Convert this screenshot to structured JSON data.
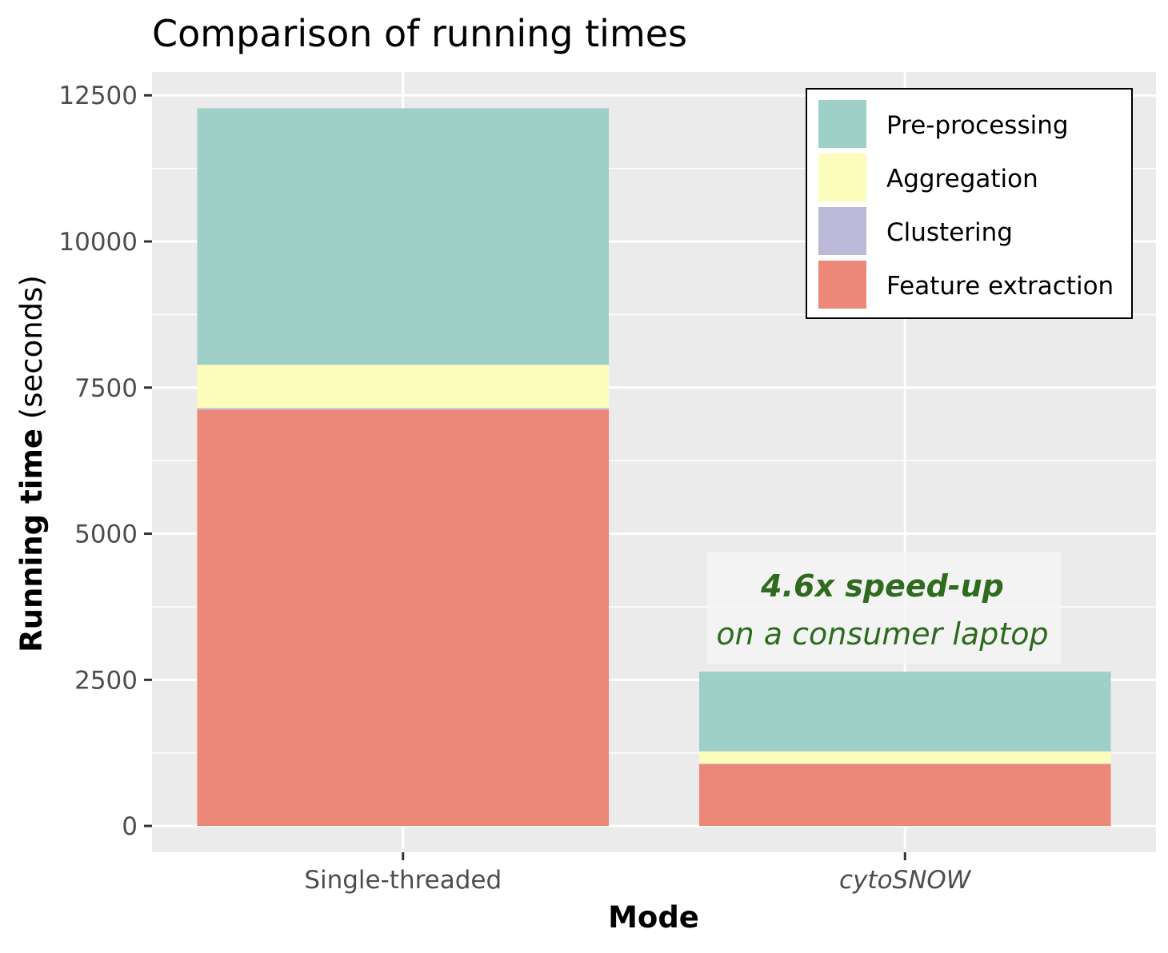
{
  "chart_data": {
    "type": "bar",
    "stacked": true,
    "title": "Comparison of running times",
    "xlabel": "Mode",
    "ylabel_bold": "Running time",
    "ylabel_rest": " (seconds)",
    "categories": [
      "Single-threaded",
      "cytoSNOW"
    ],
    "ylim": [
      -450,
      12900
    ],
    "yticks": [
      0,
      2500,
      5000,
      7500,
      10000,
      12500
    ],
    "tick_labels": [
      "0",
      "2500",
      "5000",
      "7500",
      "10000",
      "12500"
    ],
    "series": [
      {
        "name": "Feature extraction",
        "color": "#EB8878",
        "values": [
          7120,
          1060
        ]
      },
      {
        "name": "Clustering",
        "color": "#BCB9D8",
        "values": [
          30,
          5
        ]
      },
      {
        "name": "Aggregation",
        "color": "#FCFCBB",
        "values": [
          740,
          210
        ]
      },
      {
        "name": "Pre-processing",
        "color": "#9FD0C8",
        "values": [
          4390,
          1365
        ]
      }
    ],
    "legend_order": [
      "Pre-processing",
      "Aggregation",
      "Clustering",
      "Feature extraction"
    ],
    "legend_position": "top-right",
    "grid": true,
    "annotation": {
      "line1": "4.6x speed-up",
      "line2": "on a consumer laptop",
      "color": "#2E6B1F"
    }
  }
}
